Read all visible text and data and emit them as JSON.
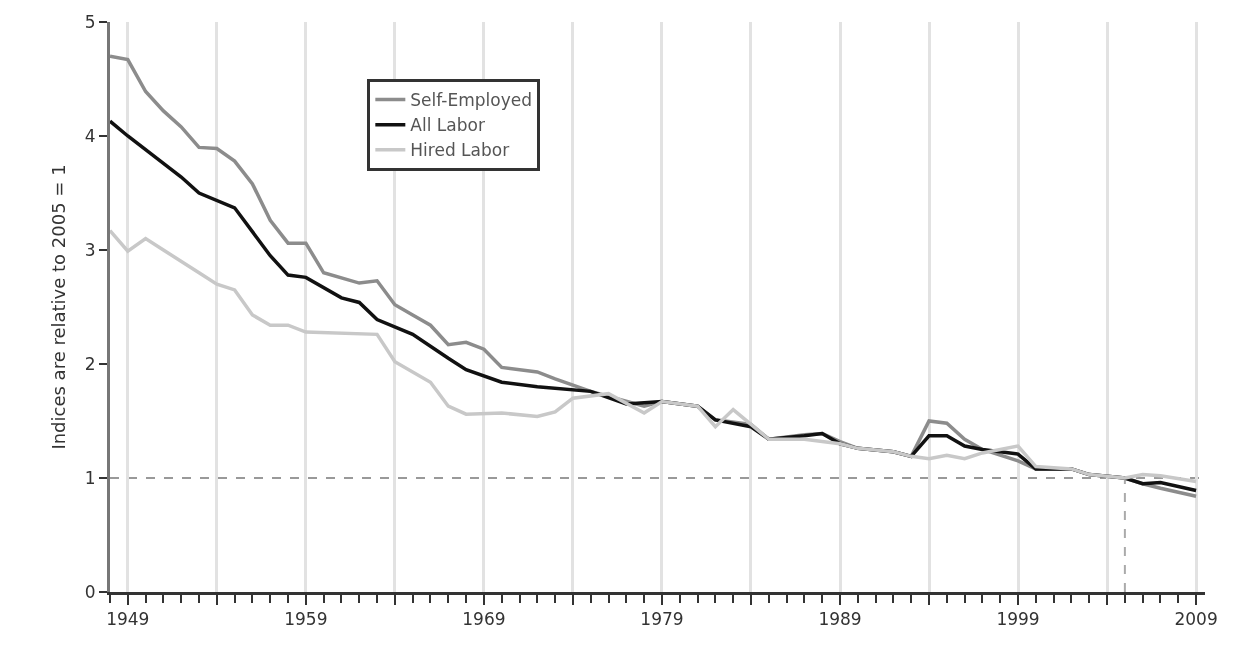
{
  "chart_data": {
    "type": "line",
    "ylabel": "Indices are relative to 2005 = 1",
    "xlim": [
      1948,
      2009.5
    ],
    "ylim": [
      0,
      5
    ],
    "yticks": [
      0,
      1,
      2,
      3,
      4,
      5
    ],
    "xticks": [
      1949,
      {
        "value": 1954,
        "label": null
      },
      1959,
      {
        "value": 1964,
        "label": null
      },
      1969,
      {
        "value": 1974,
        "label": null
      },
      1979,
      {
        "value": 1984,
        "label": null
      },
      1989,
      {
        "value": 1994,
        "label": null
      },
      1999,
      {
        "value": 2004,
        "label": null
      },
      2009
    ],
    "grid": "x",
    "legend": "top left",
    "line_style": "solid",
    "marker": "none",
    "ref_lines": [
      {
        "axis": "y",
        "value": 1,
        "label": null,
        "color": "#999999",
        "line_style": "dashed"
      },
      {
        "axis": "x",
        "value": 2005,
        "label": null,
        "color": "#aaaaaa",
        "line_style": "dashed"
      }
    ],
    "series": [
      {
        "name": "Self-Employed",
        "color": "#8c8c8c",
        "x": [
          1948,
          1949,
          1950,
          1951,
          1952,
          1953,
          1954,
          1955,
          1956,
          1957,
          1958,
          1959,
          1960,
          1962,
          1963,
          1964,
          1965,
          1966,
          1967,
          1968,
          1969,
          1970,
          1972,
          1973,
          1975,
          1978,
          1979,
          1981,
          1982,
          1984,
          1985,
          1987,
          1988,
          1989,
          1990,
          1992,
          1993,
          1994,
          1995,
          1996,
          1997,
          1999,
          2000,
          2002,
          2003,
          2005,
          2006,
          2007,
          2009
        ],
        "values": [
          4.7,
          4.67,
          4.39,
          4.22,
          4.08,
          3.9,
          3.89,
          3.78,
          3.58,
          3.26,
          3.06,
          3.06,
          2.8,
          2.71,
          2.73,
          2.52,
          2.43,
          2.34,
          2.17,
          2.19,
          2.13,
          1.97,
          1.93,
          1.87,
          1.76,
          1.63,
          1.67,
          1.63,
          1.51,
          1.47,
          1.34,
          1.38,
          1.39,
          1.32,
          1.26,
          1.23,
          1.19,
          1.5,
          1.48,
          1.34,
          1.25,
          1.15,
          1.08,
          1.08,
          1.03,
          1.0,
          0.95,
          0.91,
          0.84
        ]
      },
      {
        "name": "All Labor",
        "color": "#111111",
        "x": [
          1948,
          1949,
          1951,
          1952,
          1953,
          1955,
          1957,
          1958,
          1959,
          1961,
          1962,
          1963,
          1965,
          1967,
          1968,
          1970,
          1972,
          1975,
          1977,
          1979,
          1981,
          1982,
          1984,
          1985,
          1987,
          1988,
          1989,
          1990,
          1992,
          1993,
          1994,
          1995,
          1996,
          1997,
          1999,
          2000,
          2002,
          2003,
          2005,
          2006,
          2007,
          2009
        ],
        "values": [
          4.13,
          4.0,
          3.76,
          3.64,
          3.5,
          3.37,
          2.95,
          2.78,
          2.76,
          2.58,
          2.54,
          2.39,
          2.26,
          2.05,
          1.95,
          1.84,
          1.8,
          1.76,
          1.65,
          1.67,
          1.63,
          1.51,
          1.45,
          1.34,
          1.37,
          1.39,
          1.3,
          1.26,
          1.23,
          1.19,
          1.37,
          1.37,
          1.28,
          1.25,
          1.21,
          1.08,
          1.08,
          1.03,
          1.0,
          0.95,
          0.96,
          0.89
        ]
      },
      {
        "name": "Hired Labor",
        "color": "#c8c8c8",
        "x": [
          1948,
          1949,
          1950,
          1951,
          1953,
          1954,
          1955,
          1956,
          1957,
          1958,
          1959,
          1963,
          1964,
          1966,
          1967,
          1968,
          1970,
          1972,
          1973,
          1974,
          1976,
          1978,
          1979,
          1981,
          1982,
          1983,
          1984,
          1985,
          1987,
          1989,
          1990,
          1992,
          1993,
          1994,
          1995,
          1996,
          1997,
          1999,
          2000,
          2002,
          2003,
          2005,
          2006,
          2007,
          2009
        ],
        "values": [
          3.17,
          2.99,
          3.1,
          3.0,
          2.8,
          2.7,
          2.65,
          2.43,
          2.34,
          2.34,
          2.28,
          2.26,
          2.02,
          1.84,
          1.63,
          1.56,
          1.57,
          1.54,
          1.58,
          1.7,
          1.74,
          1.57,
          1.67,
          1.63,
          1.45,
          1.6,
          1.47,
          1.34,
          1.34,
          1.3,
          1.26,
          1.23,
          1.19,
          1.17,
          1.2,
          1.17,
          1.22,
          1.28,
          1.1,
          1.08,
          1.03,
          1.0,
          1.03,
          1.02,
          0.97
        ]
      }
    ]
  }
}
